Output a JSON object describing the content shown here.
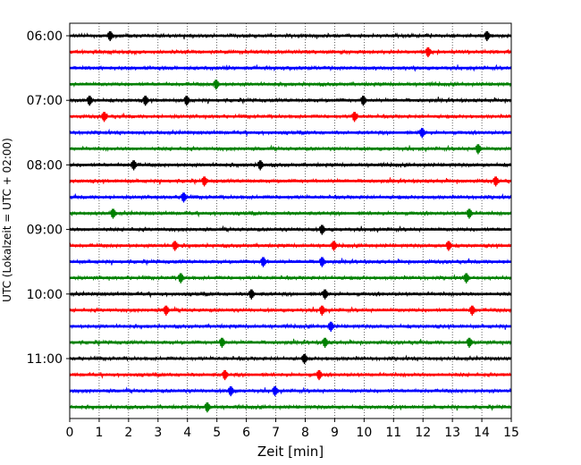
{
  "chart_data": {
    "type": "line",
    "title": "",
    "xlabel": "Zeit  [min]",
    "ylabel": "UTC (Lokalzeit = UTC + 02:00)",
    "xlim": [
      0,
      15
    ],
    "x_ticks": [
      "0",
      "1",
      "2",
      "3",
      "4",
      "5",
      "6",
      "7",
      "8",
      "9",
      "10",
      "11",
      "12",
      "13",
      "14",
      "15"
    ],
    "y_ticks": [
      "06:00",
      "07:00",
      "08:00",
      "09:00",
      "10:00",
      "11:00"
    ],
    "grid": "vertical dotted lines at each minute",
    "trace_interval_minutes": 15,
    "trace_colors_cycle": [
      "#000000",
      "#ff0000",
      "#0000ff",
      "#008000"
    ],
    "traces": [
      {
        "start": "06:00",
        "color": "#000000",
        "events_min": [
          1.4,
          14.2
        ]
      },
      {
        "start": "06:15",
        "color": "#ff0000",
        "events_min": [
          12.2
        ]
      },
      {
        "start": "06:30",
        "color": "#0000ff",
        "events_min": []
      },
      {
        "start": "06:45",
        "color": "#008000",
        "events_min": [
          5.0
        ]
      },
      {
        "start": "07:00",
        "color": "#000000",
        "events_min": [
          0.7,
          2.6,
          4.0,
          10.0
        ]
      },
      {
        "start": "07:15",
        "color": "#ff0000",
        "events_min": [
          1.2,
          9.7
        ]
      },
      {
        "start": "07:30",
        "color": "#0000ff",
        "events_min": [
          12.0
        ]
      },
      {
        "start": "07:45",
        "color": "#008000",
        "events_min": [
          13.9
        ]
      },
      {
        "start": "08:00",
        "color": "#000000",
        "events_min": [
          2.2,
          6.5
        ]
      },
      {
        "start": "08:15",
        "color": "#ff0000",
        "events_min": [
          4.6,
          14.5
        ]
      },
      {
        "start": "08:30",
        "color": "#0000ff",
        "events_min": [
          3.9
        ]
      },
      {
        "start": "08:45",
        "color": "#008000",
        "events_min": [
          1.5,
          13.6
        ]
      },
      {
        "start": "09:00",
        "color": "#000000",
        "events_min": [
          8.6
        ]
      },
      {
        "start": "09:15",
        "color": "#ff0000",
        "events_min": [
          3.6,
          9.0,
          12.9
        ]
      },
      {
        "start": "09:30",
        "color": "#0000ff",
        "events_min": [
          6.6,
          8.6
        ]
      },
      {
        "start": "09:45",
        "color": "#008000",
        "events_min": [
          3.8,
          13.5
        ]
      },
      {
        "start": "10:00",
        "color": "#000000",
        "events_min": [
          6.2,
          8.7
        ]
      },
      {
        "start": "10:15",
        "color": "#ff0000",
        "events_min": [
          3.3,
          8.6,
          13.7
        ]
      },
      {
        "start": "10:30",
        "color": "#0000ff",
        "events_min": [
          8.9
        ]
      },
      {
        "start": "10:45",
        "color": "#008000",
        "events_min": [
          5.2,
          8.7,
          13.6
        ]
      },
      {
        "start": "11:00",
        "color": "#000000",
        "events_min": [
          8.0
        ]
      },
      {
        "start": "11:15",
        "color": "#ff0000",
        "events_min": [
          5.3,
          8.5
        ]
      },
      {
        "start": "11:30",
        "color": "#0000ff",
        "events_min": [
          5.5,
          7.0
        ]
      },
      {
        "start": "11:45",
        "color": "#008000",
        "events_min": [
          4.7
        ]
      }
    ]
  }
}
